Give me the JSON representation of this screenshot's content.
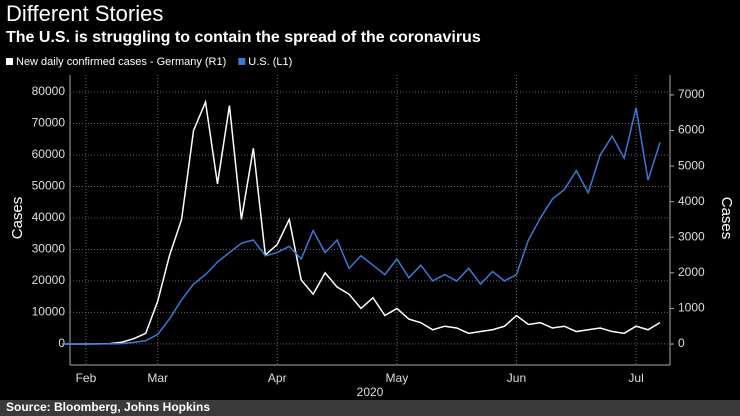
{
  "chart_data": {
    "type": "line",
    "title": "Different Stories",
    "subtitle": "The U.S. is struggling to contain the spread of the coronavirus",
    "ylabel": "Cases",
    "y2label": "Cases",
    "xlabel": "2020",
    "source": "Source: Bloomberg, Johns Hopkins",
    "categories": [
      null,
      null,
      "Feb",
      null,
      null,
      null,
      null,
      null,
      "Mar",
      null,
      null,
      null,
      null,
      null,
      null,
      null,
      null,
      null,
      "Apr",
      null,
      null,
      null,
      null,
      null,
      null,
      null,
      null,
      null,
      "May",
      null,
      null,
      null,
      null,
      null,
      null,
      null,
      null,
      null,
      "Jun",
      null,
      null,
      null,
      null,
      null,
      null,
      null,
      null,
      null,
      "Jul",
      null,
      null
    ],
    "series": [
      {
        "name": "New daily confirmed cases - Germany (R1)",
        "color": "#ffffff",
        "axis": "y2",
        "values": [
          0,
          0,
          0,
          5,
          10,
          50,
          150,
          300,
          1200,
          2500,
          3500,
          6000,
          6800,
          4500,
          6700,
          3500,
          5500,
          2500,
          2800,
          3500,
          1800,
          1400,
          2000,
          1600,
          1400,
          1000,
          1300,
          800,
          1000,
          700,
          600,
          400,
          500,
          450,
          300,
          350,
          400,
          500,
          800,
          550,
          600,
          450,
          500,
          350,
          400,
          450,
          350,
          300,
          500,
          400,
          600
        ]
      },
      {
        "name": "U.S. (L1)",
        "color": "#3a78d8",
        "values": [
          0,
          0,
          0,
          0,
          0,
          100,
          500,
          1000,
          3000,
          8000,
          14000,
          19000,
          22000,
          26000,
          29000,
          32000,
          33000,
          28000,
          29000,
          31000,
          27000,
          36000,
          29000,
          33000,
          24000,
          28000,
          25000,
          22000,
          27000,
          21000,
          25000,
          20000,
          22000,
          20000,
          24000,
          19000,
          23000,
          20000,
          22000,
          33000,
          40000,
          46000,
          49000,
          55000,
          48000,
          60000,
          66000,
          59000,
          75000,
          52000,
          64000
        ]
      }
    ],
    "ylim": [
      -6700,
      85400
    ],
    "yticks": [
      0,
      10000,
      20000,
      30000,
      40000,
      50000,
      60000,
      70000,
      80000
    ],
    "y2lim": [
      -590,
      7560
    ],
    "y2ticks": [
      0,
      1000,
      2000,
      3000,
      4000,
      5000,
      6000,
      7000
    ],
    "grid": true
  }
}
